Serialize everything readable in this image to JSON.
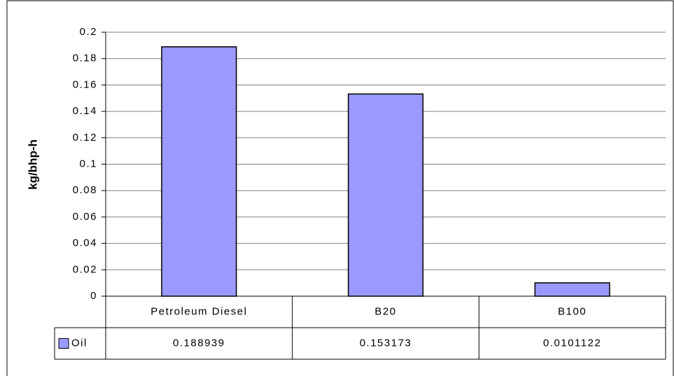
{
  "chart_data": {
    "type": "bar",
    "y_label": "kg/bhp-h",
    "categories": [
      "Petroleum Diesel",
      "B20",
      "B100"
    ],
    "series": [
      {
        "name": "Oil",
        "color": "#9999ff",
        "values": [
          0.188939,
          0.153173,
          0.0101122
        ]
      }
    ],
    "ylim": [
      0,
      0.2
    ],
    "yticks": [
      0,
      0.02,
      0.04,
      0.06,
      0.08,
      0.1,
      0.12,
      0.14,
      0.16,
      0.18,
      0.2
    ],
    "grid": true,
    "data_table": true
  }
}
